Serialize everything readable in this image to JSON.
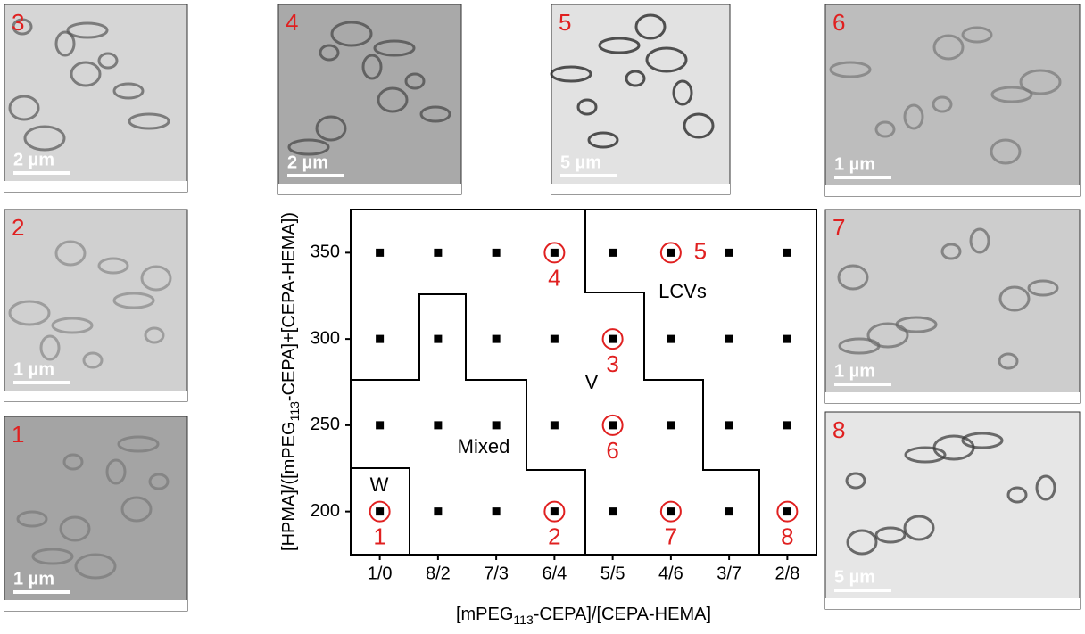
{
  "chart_data": {
    "type": "scatter",
    "categories": [
      "1/0",
      "8/2",
      "7/3",
      "6/4",
      "5/5",
      "4/6",
      "3/7",
      "2/8"
    ],
    "ylim": [
      175,
      375
    ],
    "yticks": [
      200,
      250,
      300,
      350
    ],
    "x_label": [
      "[mPEG",
      "113",
      "-CEPA]/[CEPA-HEMA]"
    ],
    "y_label": [
      "[HPMA]/([mPEG",
      "113",
      "-CEPA]+[CEPA-HEMA])"
    ],
    "color": "#000000",
    "highlight_color": "#e02020",
    "points": [
      {
        "x": "1/0",
        "y": 200
      },
      {
        "x": "1/0",
        "y": 250
      },
      {
        "x": "1/0",
        "y": 300
      },
      {
        "x": "1/0",
        "y": 350
      },
      {
        "x": "8/2",
        "y": 200
      },
      {
        "x": "8/2",
        "y": 250
      },
      {
        "x": "8/2",
        "y": 300
      },
      {
        "x": "8/2",
        "y": 350
      },
      {
        "x": "7/3",
        "y": 200
      },
      {
        "x": "7/3",
        "y": 250
      },
      {
        "x": "7/3",
        "y": 300
      },
      {
        "x": "7/3",
        "y": 350
      },
      {
        "x": "6/4",
        "y": 200
      },
      {
        "x": "6/4",
        "y": 250
      },
      {
        "x": "6/4",
        "y": 300
      },
      {
        "x": "6/4",
        "y": 350
      },
      {
        "x": "5/5",
        "y": 200
      },
      {
        "x": "5/5",
        "y": 250
      },
      {
        "x": "5/5",
        "y": 300
      },
      {
        "x": "5/5",
        "y": 350
      },
      {
        "x": "4/6",
        "y": 200
      },
      {
        "x": "4/6",
        "y": 250
      },
      {
        "x": "4/6",
        "y": 300
      },
      {
        "x": "4/6",
        "y": 350
      },
      {
        "x": "3/7",
        "y": 200
      },
      {
        "x": "3/7",
        "y": 250
      },
      {
        "x": "3/7",
        "y": 300
      },
      {
        "x": "3/7",
        "y": 350
      },
      {
        "x": "2/8",
        "y": 200
      },
      {
        "x": "2/8",
        "y": 250
      },
      {
        "x": "2/8",
        "y": 300
      },
      {
        "x": "2/8",
        "y": 350
      }
    ],
    "samples": [
      {
        "label": "1",
        "x": "1/0",
        "y": 200
      },
      {
        "label": "2",
        "x": "6/4",
        "y": 200
      },
      {
        "label": "3",
        "x": "5/5",
        "y": 300
      },
      {
        "label": "4",
        "x": "6/4",
        "y": 350
      },
      {
        "label": "5",
        "x": "4/6",
        "y": 350
      },
      {
        "label": "6",
        "x": "5/5",
        "y": 250
      },
      {
        "label": "7",
        "x": "4/6",
        "y": 200
      },
      {
        "label": "8",
        "x": "2/8",
        "y": 200
      }
    ],
    "regions": [
      "W",
      "Mixed",
      "V",
      "LCVs"
    ]
  },
  "images": [
    {
      "label": "3",
      "scale": "2 µm"
    },
    {
      "label": "4",
      "scale": "2 µm"
    },
    {
      "label": "5",
      "scale": "5 µm"
    },
    {
      "label": "6",
      "scale": "1 µm"
    },
    {
      "label": "2",
      "scale": "1 µm"
    },
    {
      "label": "7",
      "scale": "1 µm"
    },
    {
      "label": "1",
      "scale": "1 µm"
    },
    {
      "label": "8",
      "scale": "5 µm"
    }
  ]
}
